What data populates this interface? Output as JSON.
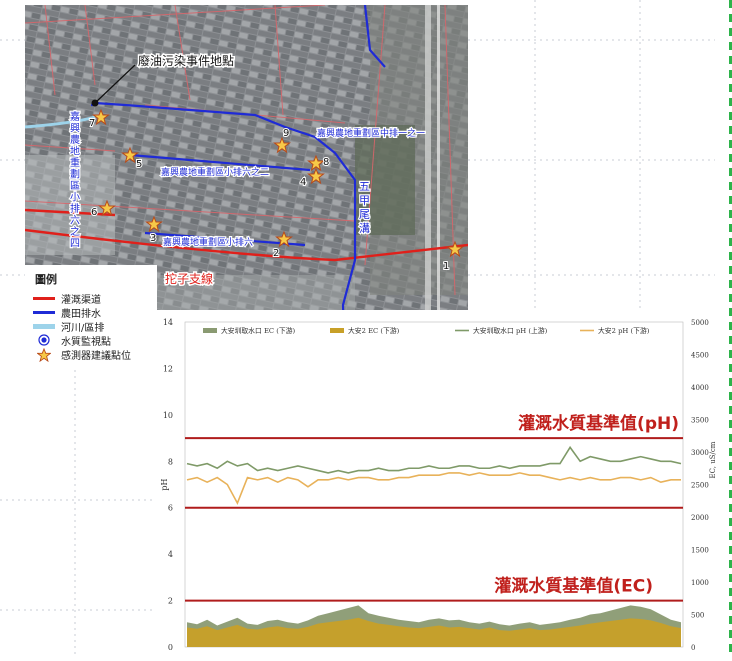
{
  "map": {
    "event_label": "廢油污染事件地點",
    "canal_labels": {
      "zhongpai": "嘉興農地重劃區中排一之一",
      "xiaopai62": "嘉興農地重劃區小排六之二",
      "xiaopai6": "嘉興農地重劃區小排六",
      "xiaopai64": "嘉\n興\n農\n地\n重\n劃\n區\n小\n排\n六\n之\n四",
      "wujia": "五\n甲\n尾\n溝",
      "tuozi": "拕子支線"
    },
    "station_numbers": [
      "1",
      "2",
      "3",
      "4",
      "5",
      "6",
      "7",
      "8",
      "9"
    ],
    "legend": {
      "title": "圖例",
      "items": [
        {
          "label": "灌溉渠道",
          "kind": "line",
          "color": "#e0201b"
        },
        {
          "label": "農田排水",
          "kind": "line",
          "color": "#1f2bd6"
        },
        {
          "label": "河川/區排",
          "kind": "line",
          "color": "#9dd3ea"
        },
        {
          "label": "水質監視點",
          "kind": "dot-icon"
        },
        {
          "label": "感測器建議點位",
          "kind": "star-icon"
        }
      ]
    }
  },
  "chart_data": {
    "type": "line",
    "title": "",
    "ylabel_left": "pH",
    "ylabel_right": "EC, uS/cm",
    "ylim_left": [
      0,
      14
    ],
    "ylim_right": [
      0,
      5000
    ],
    "yticks_left": [
      "0",
      "2",
      "4",
      "6",
      "8",
      "10",
      "12",
      "14"
    ],
    "yticks_right": [
      "0",
      "500",
      "1000",
      "1500",
      "2000",
      "2500",
      "3000",
      "3500",
      "4000",
      "4500",
      "5000"
    ],
    "legend_position": "top",
    "series": [
      {
        "name": "大安圳取水口 EC (下游)",
        "axis": "right",
        "kind": "area",
        "color": "#8a9a72",
        "values": [
          380,
          350,
          420,
          330,
          390,
          450,
          360,
          340,
          400,
          420,
          380,
          360,
          410,
          480,
          520,
          560,
          600,
          640,
          520,
          480,
          450,
          420,
          400,
          380,
          420,
          440,
          410,
          420,
          380,
          360,
          390,
          350,
          330,
          360,
          380,
          340,
          360,
          380,
          420,
          450,
          500,
          520,
          560,
          600,
          640,
          620,
          580,
          500,
          420,
          380
        ]
      },
      {
        "name": "大安2 EC (下游)",
        "axis": "right",
        "kind": "area",
        "color": "#c8a028",
        "values": [
          300,
          280,
          320,
          260,
          300,
          340,
          280,
          270,
          300,
          320,
          290,
          280,
          310,
          360,
          380,
          400,
          420,
          450,
          400,
          360,
          340,
          320,
          300,
          290,
          310,
          330,
          300,
          310,
          290,
          270,
          300,
          260,
          250,
          270,
          290,
          260,
          270,
          290,
          310,
          330,
          360,
          380,
          400,
          420,
          440,
          430,
          410,
          370,
          320,
          290
        ]
      },
      {
        "name": "大安圳取水口 pH (上游)",
        "axis": "left",
        "kind": "line",
        "color": "#7f9a68",
        "values": [
          7.9,
          7.8,
          7.9,
          7.7,
          8.0,
          7.8,
          7.9,
          7.6,
          7.7,
          7.6,
          7.7,
          7.8,
          7.7,
          7.6,
          7.5,
          7.6,
          7.5,
          7.6,
          7.6,
          7.7,
          7.6,
          7.6,
          7.7,
          7.7,
          7.8,
          7.7,
          7.7,
          7.8,
          7.8,
          7.7,
          7.7,
          7.8,
          7.7,
          7.8,
          7.8,
          7.8,
          7.9,
          7.9,
          8.6,
          8.0,
          8.2,
          8.1,
          8.0,
          8.0,
          8.1,
          8.2,
          8.1,
          8.0,
          8.0,
          7.9
        ]
      },
      {
        "name": "大安2 pH (下游)",
        "axis": "left",
        "kind": "line",
        "color": "#e8b25a",
        "values": [
          7.2,
          7.3,
          7.1,
          7.3,
          7.0,
          6.2,
          7.3,
          7.2,
          7.3,
          7.1,
          7.3,
          7.2,
          6.9,
          7.2,
          7.2,
          7.3,
          7.2,
          7.3,
          7.3,
          7.2,
          7.2,
          7.3,
          7.3,
          7.4,
          7.4,
          7.4,
          7.5,
          7.5,
          7.4,
          7.5,
          7.4,
          7.4,
          7.4,
          7.5,
          7.4,
          7.4,
          7.3,
          7.2,
          7.3,
          7.2,
          7.3,
          7.2,
          7.2,
          7.3,
          7.3,
          7.2,
          7.3,
          7.1,
          7.2,
          7.2
        ]
      }
    ],
    "thresholds": [
      {
        "axis": "left",
        "value": 9.0,
        "color": "#b01c1c"
      },
      {
        "axis": "left",
        "value": 6.0,
        "color": "#b01c1c"
      },
      {
        "axis": "left",
        "value": 2.0,
        "color": "#b01c1c"
      }
    ],
    "annotations": [
      {
        "text": "灌溉水質基準值(pH)",
        "color": "#c0201c"
      },
      {
        "text": "灌溉水質基準值(EC)",
        "color": "#c0201c"
      }
    ]
  }
}
